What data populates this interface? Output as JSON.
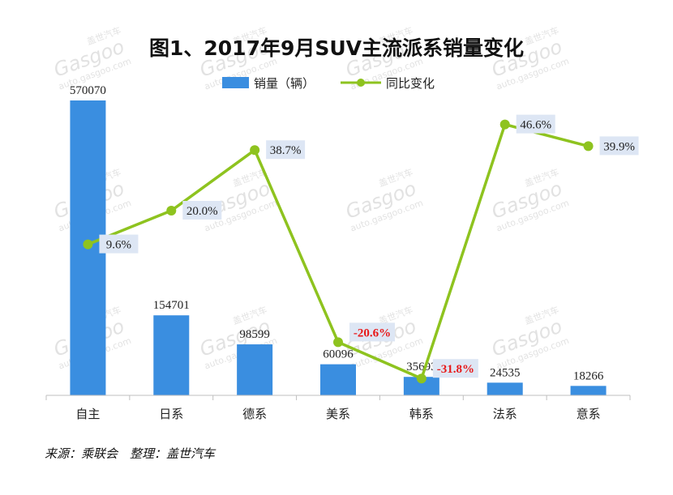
{
  "title": "图1、2017年9月SUV主流派系销量变化",
  "legend": {
    "bar_label": "销量（辆）",
    "line_label": "同比变化"
  },
  "source_note": "来源：乘联会　整理：盖世汽车",
  "watermark": {
    "brand": "Gasgoo",
    "cn": "盖世汽车",
    "url": "auto.gasgoo.com"
  },
  "colors": {
    "bar": "#3a8ee0",
    "line": "#8ec31f",
    "negative_label": "#e81818",
    "label_bg": "#dde6f4"
  },
  "chart_data": {
    "type": "bar",
    "title": "图1、2017年9月SUV主流派系销量变化",
    "categories": [
      "自主",
      "日系",
      "德系",
      "美系",
      "韩系",
      "法系",
      "意系"
    ],
    "series": [
      {
        "name": "销量（辆）",
        "type": "bar",
        "values": [
          570070,
          154701,
          98599,
          60096,
          35693,
          24535,
          18266
        ],
        "labels": [
          "570070",
          "154701",
          "98599",
          "60096",
          "35693",
          "24535",
          "18266"
        ]
      },
      {
        "name": "同比变化",
        "type": "line",
        "values": [
          9.6,
          20.0,
          38.7,
          -20.6,
          -31.8,
          46.6,
          39.9
        ],
        "labels": [
          "9.6%",
          "20.0%",
          "38.7%",
          "-20.6%",
          "-31.8%",
          "46.6%",
          "39.9%"
        ]
      }
    ],
    "ylim_bar": [
      0,
      570070
    ],
    "ylim_line": [
      -40,
      60
    ],
    "grid": false,
    "legend_position": "top"
  }
}
